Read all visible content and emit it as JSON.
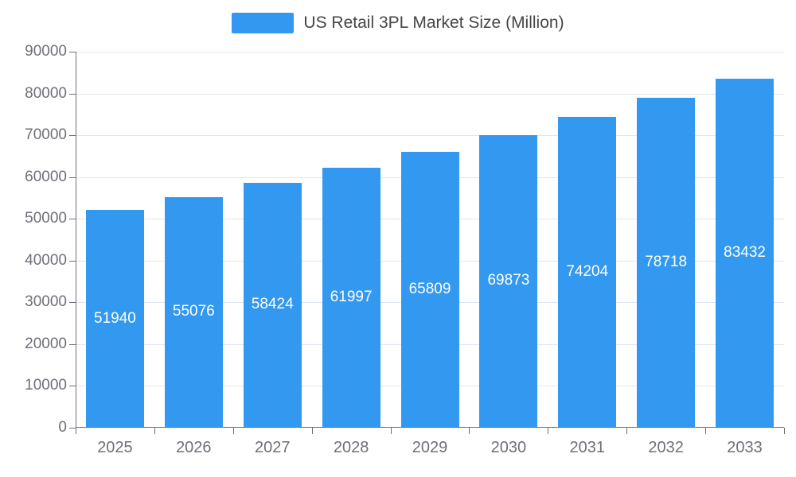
{
  "chart_data": {
    "type": "bar",
    "title": "US Retail 3PL Market Size (Million)",
    "legend": [
      "US Retail 3PL Market Size (Million)"
    ],
    "legend_position": "top",
    "categories": [
      "2025",
      "2026",
      "2027",
      "2028",
      "2029",
      "2030",
      "2031",
      "2032",
      "2033"
    ],
    "values": [
      51940,
      55076,
      58424,
      61997,
      65809,
      69873,
      74204,
      78718,
      83432
    ],
    "xlabel": "",
    "ylabel": "",
    "ylim": [
      0,
      90000
    ],
    "y_ticks": [
      0,
      10000,
      20000,
      30000,
      40000,
      50000,
      60000,
      70000,
      80000,
      90000
    ],
    "grid": true,
    "colors": {
      "bar": "#3398f0",
      "bar_value_label": "#ffffff",
      "axis_text": "#6e7079",
      "axis_line": "#6e7079",
      "gridline": "#e0e6f1",
      "legend_text": "#464646",
      "background": "#ffffff"
    }
  }
}
